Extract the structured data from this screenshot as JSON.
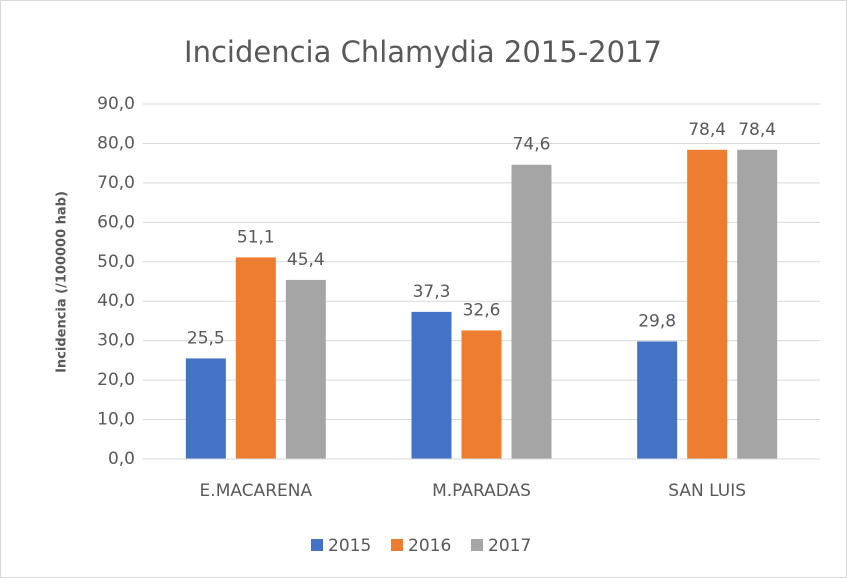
{
  "chart_data": {
    "type": "bar",
    "title": "Incidencia Chlamydia 2015-2017",
    "y_label": "Incidencia (/100000 hab)",
    "categories": [
      "E.MACARENA",
      "M.PARADAS",
      "SAN LUIS"
    ],
    "series": [
      {
        "name": "2015",
        "color": "#4472c4",
        "values": [
          25.5,
          37.3,
          29.8
        ],
        "value_labels": [
          "25,5",
          "37,3",
          "29,8"
        ]
      },
      {
        "name": "2016",
        "color": "#ed7d31",
        "values": [
          51.1,
          32.6,
          78.4
        ],
        "value_labels": [
          "51,1",
          "32,6",
          "78,4"
        ]
      },
      {
        "name": "2017",
        "color": "#a5a5a5",
        "values": [
          45.4,
          74.6,
          78.4
        ],
        "value_labels": [
          "45,4",
          "74,6",
          "78,4"
        ]
      }
    ],
    "ylim": [
      0,
      90
    ],
    "yticks": [
      {
        "value": 0,
        "label": "0,0"
      },
      {
        "value": 10,
        "label": "10,0"
      },
      {
        "value": 20,
        "label": "20,0"
      },
      {
        "value": 30,
        "label": "30,0"
      },
      {
        "value": 40,
        "label": "40,0"
      },
      {
        "value": 50,
        "label": "50,0"
      },
      {
        "value": 60,
        "label": "60,0"
      },
      {
        "value": 70,
        "label": "70,0"
      },
      {
        "value": 80,
        "label": "80,0"
      },
      {
        "value": 90,
        "label": "90,0"
      }
    ],
    "grid": true,
    "legend": "bottom"
  }
}
